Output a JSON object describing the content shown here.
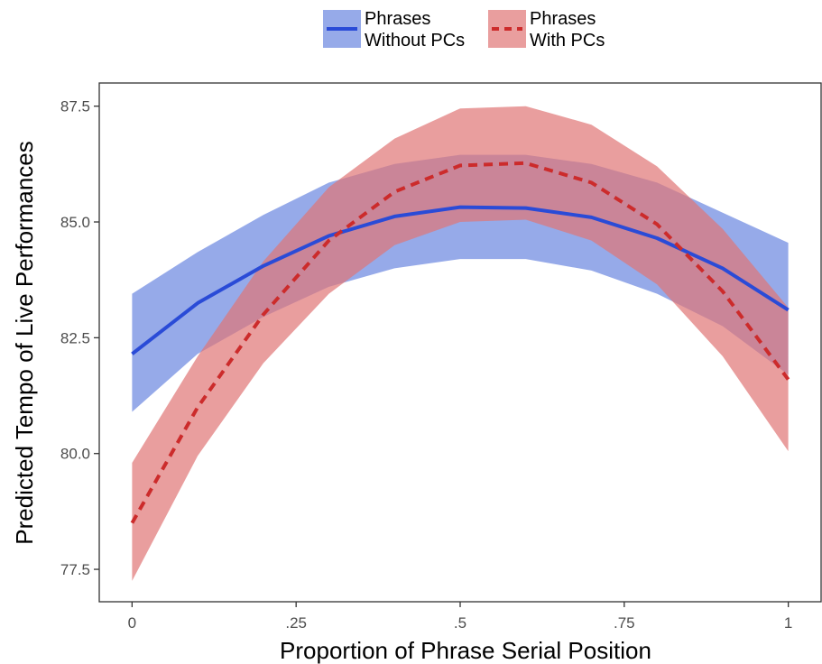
{
  "chart_data": {
    "type": "line",
    "xlabel": "Proportion of Phrase Serial Position",
    "ylabel": "Predicted Tempo of Live Performances",
    "x": [
      0,
      0.1,
      0.2,
      0.3,
      0.4,
      0.5,
      0.6,
      0.7,
      0.8,
      0.9,
      1.0
    ],
    "xticks": [
      0,
      0.25,
      0.5,
      0.75,
      1
    ],
    "xtick_labels": [
      "0",
      ".25",
      ".5",
      ".75",
      "1"
    ],
    "yticks": [
      77.5,
      80.0,
      82.5,
      85.0,
      87.5
    ],
    "ytick_labels": [
      "77.5",
      "80.0",
      "82.5",
      "85.0",
      "87.5"
    ],
    "xlim": [
      -0.05,
      1.05
    ],
    "ylim": [
      76.8,
      88.0
    ],
    "grid": false,
    "legend_position": "top",
    "series": [
      {
        "name": "Phrases Without PCs",
        "legend_lines": [
          "Phrases",
          "Without PCs"
        ],
        "line_style": "solid",
        "line_color": "#2a4bd7",
        "band_color": "#6a86e0",
        "values": [
          82.15,
          83.25,
          84.05,
          84.7,
          85.12,
          85.32,
          85.3,
          85.1,
          84.65,
          84.0,
          83.1
        ],
        "upper": [
          83.45,
          84.35,
          85.15,
          85.85,
          86.25,
          86.45,
          86.45,
          86.25,
          85.85,
          85.2,
          84.55
        ],
        "lower": [
          80.9,
          82.15,
          82.95,
          83.6,
          84.0,
          84.2,
          84.2,
          83.95,
          83.45,
          82.75,
          81.7
        ]
      },
      {
        "name": "Phrases With PCs",
        "legend_lines": [
          "Phrases",
          "With PCs"
        ],
        "line_style": "dashed",
        "line_color": "#cc2b2b",
        "band_color": "#e07575",
        "values": [
          78.5,
          81.0,
          83.0,
          84.6,
          85.65,
          86.22,
          86.27,
          85.85,
          84.95,
          83.5,
          81.6
        ],
        "upper": [
          79.8,
          82.1,
          84.15,
          85.75,
          86.8,
          87.45,
          87.5,
          87.1,
          86.2,
          84.85,
          83.15
        ],
        "lower": [
          77.25,
          79.95,
          81.95,
          83.45,
          84.5,
          85.0,
          85.05,
          84.6,
          83.65,
          82.1,
          80.05
        ]
      }
    ]
  }
}
